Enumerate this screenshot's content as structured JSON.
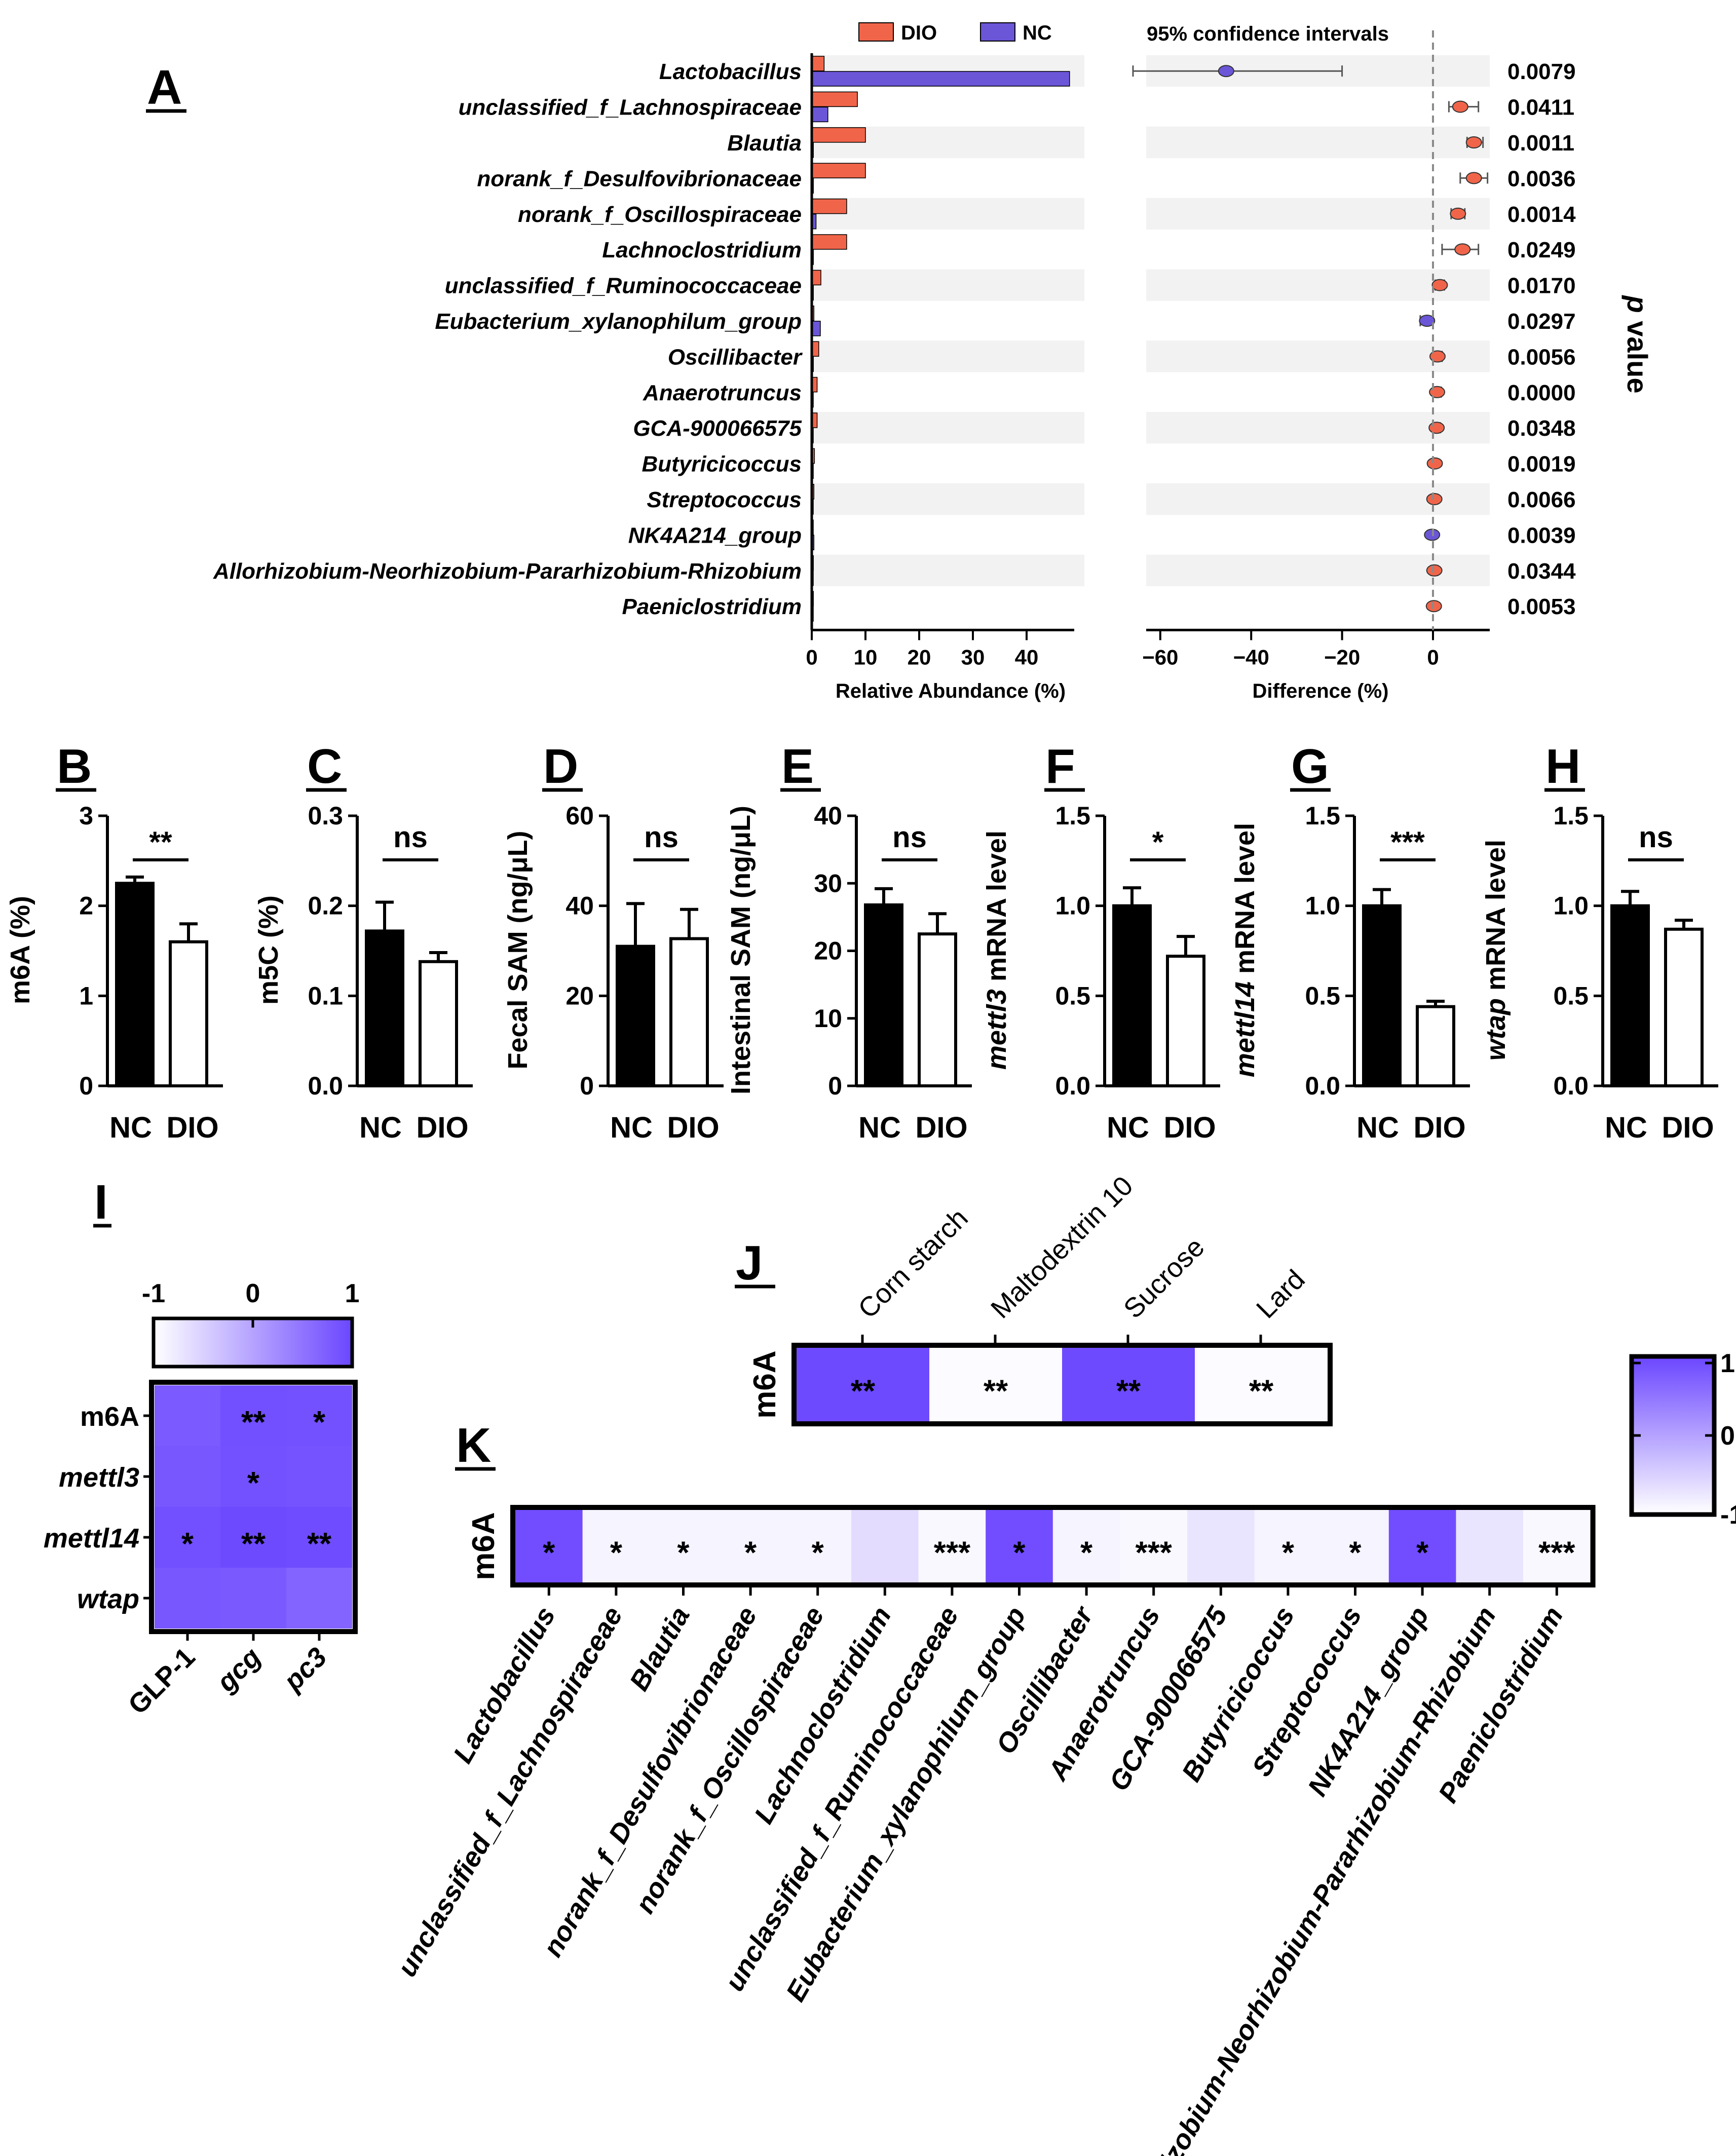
{
  "colors": {
    "dio": "#F0654A",
    "nc": "#6B56D8",
    "stripe": "#F2F2F2",
    "nc_bar": "#000000",
    "dio_bar": "#FFFFFF",
    "heat_high": "#6B46FF",
    "heat_low": "#FFFFFF"
  },
  "panels": {
    "A": "A",
    "B": "B",
    "C": "C",
    "D": "D",
    "E": "E",
    "F": "F",
    "G": "G",
    "H": "H",
    "I": "I",
    "J": "J",
    "K": "K"
  },
  "chart_data": [
    {
      "id": "A",
      "type": "bar",
      "legend": [
        "DIO",
        "NC"
      ],
      "ci_title": "95% confidence intervals",
      "right_label": "p value",
      "xlabel_abundance": "Relative Abundance (%)",
      "xlabel_difference": "Difference (%)",
      "abundance_ticks": [
        "0",
        "10",
        "20",
        "30",
        "40"
      ],
      "difference_ticks": [
        "−60",
        "−40",
        "−20",
        "0"
      ],
      "xlim_abundance": [
        0,
        48
      ],
      "xlim_difference": [
        -75,
        12
      ],
      "categories": [
        "Lactobacillus",
        "unclassified_f_Lachnospiraceae",
        "Blautia",
        "norank_f_Desulfovibrionaceae",
        "norank_f_Oscillospiraceae",
        "Lachnoclostridium",
        "unclassified_f_Ruminococcaceae",
        "Eubacterium_xylanophilum_group",
        "Oscillibacter",
        "Anaerotruncus",
        "GCA-900066575",
        "Butyricicoccus",
        "Streptococcus",
        "NK4A214_group",
        "Allorhizobium-Neorhizobium-Pararhizobium-Rhizobium",
        "Paeniclostridium"
      ],
      "series": [
        {
          "name": "DIO",
          "values": [
            2.3,
            8.5,
            10.0,
            10.0,
            6.5,
            6.5,
            1.7,
            0.4,
            1.3,
            1.0,
            1.0,
            0.5,
            0.4,
            0.2,
            0.3,
            0.3
          ]
        },
        {
          "name": "NC",
          "values": [
            48.0,
            3.0,
            0.3,
            0.3,
            0.8,
            0.3,
            0.3,
            1.6,
            0.3,
            0.1,
            0.1,
            0.1,
            0.1,
            0.4,
            0.1,
            0.1
          ]
        }
      ],
      "difference": [
        -45.5,
        6.0,
        9.0,
        9.0,
        5.5,
        6.5,
        1.5,
        -1.3,
        1.0,
        0.9,
        0.8,
        0.4,
        0.3,
        -0.2,
        0.3,
        0.2
      ],
      "ci_low": [
        -66.0,
        3.5,
        7.5,
        6.0,
        4.0,
        2.0,
        0.5,
        -2.8,
        0.0,
        0.1,
        0.0,
        0.0,
        -0.4,
        -0.8,
        -0.4,
        -0.4
      ],
      "ci_high": [
        -20.0,
        10.0,
        11.0,
        12.0,
        7.0,
        10.0,
        2.5,
        0.0,
        2.0,
        1.8,
        1.6,
        0.9,
        1.0,
        0.4,
        1.0,
        0.8
      ],
      "direction": [
        "NC",
        "DIO",
        "DIO",
        "DIO",
        "DIO",
        "DIO",
        "DIO",
        "NC",
        "DIO",
        "DIO",
        "DIO",
        "DIO",
        "DIO",
        "NC",
        "DIO",
        "DIO"
      ],
      "pvalues": [
        "0.0079",
        "0.0411",
        "0.0011",
        "0.0036",
        "0.0014",
        "0.0249",
        "0.0170",
        "0.0297",
        "0.0056",
        "0.0000",
        "0.0348",
        "0.0019",
        "0.0066",
        "0.0039",
        "0.0344",
        "0.0053"
      ]
    },
    {
      "id": "B",
      "type": "bar",
      "categories": [
        "NC",
        "DIO"
      ],
      "values": [
        2.25,
        1.6
      ],
      "errors": [
        0.07,
        0.2
      ],
      "ylim": [
        0,
        3
      ],
      "yticks": [
        "0",
        "1",
        "2",
        "3"
      ],
      "ylabel": "m6A (%)",
      "ylabel_italic": "",
      "ylabel_rest": "m6A (%)",
      "sig": "**"
    },
    {
      "id": "C",
      "type": "bar",
      "categories": [
        "NC",
        "DIO"
      ],
      "values": [
        0.172,
        0.138
      ],
      "errors": [
        0.032,
        0.01
      ],
      "ylim": [
        0,
        0.3
      ],
      "yticks": [
        "0.0",
        "0.1",
        "0.2",
        "0.3"
      ],
      "ylabel": "m5C (%)",
      "ylabel_italic": "",
      "ylabel_rest": "m5C (%)",
      "sig": "ns"
    },
    {
      "id": "D",
      "type": "bar",
      "categories": [
        "NC",
        "DIO"
      ],
      "values": [
        31.0,
        32.7
      ],
      "errors": [
        9.5,
        6.5
      ],
      "ylim": [
        0,
        60
      ],
      "yticks": [
        "0",
        "20",
        "40",
        "60"
      ],
      "ylabel": "Fecal SAM (ng/μL)",
      "ylabel_italic": "",
      "ylabel_rest": "Fecal SAM (ng/μL)",
      "sig": "ns"
    },
    {
      "id": "E",
      "type": "bar",
      "categories": [
        "NC",
        "DIO"
      ],
      "values": [
        26.8,
        22.5
      ],
      "errors": [
        2.4,
        3.0
      ],
      "ylim": [
        0,
        40
      ],
      "yticks": [
        "0",
        "10",
        "20",
        "30",
        "40"
      ],
      "ylabel": "Intestinal SAM (ng/μL)",
      "ylabel_italic": "",
      "ylabel_rest": "Intestinal SAM (ng/μL)",
      "sig": "ns"
    },
    {
      "id": "F",
      "type": "bar",
      "categories": [
        "NC",
        "DIO"
      ],
      "values": [
        1.0,
        0.72
      ],
      "errors": [
        0.1,
        0.11
      ],
      "ylim": [
        0,
        1.5
      ],
      "yticks": [
        "0.0",
        "0.5",
        "1.0",
        "1.5"
      ],
      "ylabel": "mettl3 mRNA level",
      "ylabel_italic": "mettl3",
      "ylabel_rest": " mRNA level",
      "sig": "*"
    },
    {
      "id": "G",
      "type": "bar",
      "categories": [
        "NC",
        "DIO"
      ],
      "values": [
        1.0,
        0.44
      ],
      "errors": [
        0.09,
        0.03
      ],
      "ylim": [
        0,
        1.5
      ],
      "yticks": [
        "0.0",
        "0.5",
        "1.0",
        "1.5"
      ],
      "ylabel": "mettl14 mRNA level",
      "ylabel_italic": "mettl14",
      "ylabel_rest": " mRNA level",
      "sig": "***"
    },
    {
      "id": "H",
      "type": "bar",
      "categories": [
        "NC",
        "DIO"
      ],
      "values": [
        1.0,
        0.87
      ],
      "errors": [
        0.08,
        0.05
      ],
      "ylim": [
        0,
        1.5
      ],
      "yticks": [
        "0.0",
        "0.5",
        "1.0",
        "1.5"
      ],
      "ylabel": "wtap mRNA level",
      "ylabel_italic": "wtap",
      "ylabel_rest": " mRNA level",
      "sig": "ns"
    },
    {
      "id": "I",
      "type": "heatmap",
      "rows": [
        "m6A",
        "mettl3",
        "mettl14",
        "wtap"
      ],
      "cols": [
        "GLP-1",
        "gcg",
        "pc3"
      ],
      "values": [
        [
          0.78,
          0.9,
          0.88
        ],
        [
          0.82,
          0.88,
          0.86
        ],
        [
          0.9,
          0.96,
          0.94
        ],
        [
          0.82,
          0.8,
          0.68
        ]
      ],
      "sig": [
        [
          "",
          "**",
          "*"
        ],
        [
          "",
          "*",
          ""
        ],
        [
          "*",
          "**",
          "**"
        ],
        [
          "",
          "",
          ""
        ]
      ],
      "scale_ticks": [
        "-1",
        "0",
        "1"
      ]
    },
    {
      "id": "J",
      "type": "heatmap",
      "rows": [
        "m6A"
      ],
      "cols": [
        "Corn starch",
        "Maltodextrin 10",
        "Sucrose",
        "Lard"
      ],
      "values": [
        [
          0.96,
          -0.96,
          0.96,
          -0.96
        ]
      ],
      "sig": [
        [
          "**",
          "**",
          "**",
          "**"
        ]
      ]
    },
    {
      "id": "K",
      "type": "heatmap",
      "rows": [
        "m6A"
      ],
      "cols": [
        "Lactobacillus",
        "unclassified_f_Lachnospiraceae",
        "Blautia",
        "norank_f_Desulfovibrionaceae",
        "norank_f_Oscillospiraceae",
        "Lachnoclostridium",
        "unclassified_f_Ruminococcaceae",
        "Eubacterium_xylanophilum_group",
        "Oscillibacter",
        "Anaerotruncus",
        "GCA-900066575",
        "Butyricicoccus",
        "Streptococcus",
        "NK4A214_group",
        "Allorhizobium-Neorhizobium-Pararhizobium-Rhizobium",
        "Paeniclostridium"
      ],
      "values": [
        [
          0.92,
          -0.88,
          -0.88,
          -0.88,
          -0.88,
          -0.62,
          -0.92,
          0.92,
          -0.88,
          -0.92,
          -0.72,
          -0.88,
          -0.88,
          0.92,
          -0.72,
          -0.92
        ]
      ],
      "sig": [
        [
          "*",
          "*",
          "*",
          "*",
          "*",
          "",
          "***",
          "*",
          "*",
          "***",
          "",
          "*",
          "*",
          "*",
          "",
          "***"
        ]
      ]
    },
    {
      "id": "JK_scale",
      "type": "heatmap",
      "scale_ticks": [
        "1",
        "0",
        "-1"
      ]
    }
  ]
}
